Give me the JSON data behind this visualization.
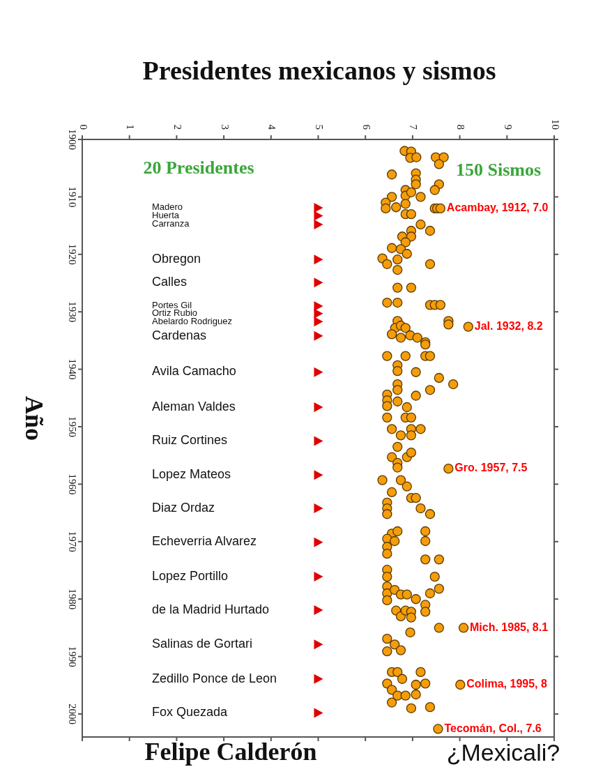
{
  "chart_data": {
    "type": "scatter",
    "title": "Presidentes mexicanos y sismos",
    "ylabel": "Año",
    "xlim": [
      0,
      10
    ],
    "xticks": [
      0,
      1,
      2,
      3,
      4,
      5,
      6,
      7,
      8,
      9,
      10
    ],
    "ylim": [
      2004,
      1900
    ],
    "yticks": [
      1900,
      1910,
      1920,
      1930,
      1940,
      1950,
      1960,
      1970,
      1980,
      1990,
      2000
    ],
    "series": [
      {
        "type": "scatter",
        "marker": "triangle",
        "color": "#e00000",
        "x": [
          5,
          5,
          5,
          5,
          5,
          5,
          5,
          5,
          5,
          5,
          5,
          5,
          5,
          5,
          5,
          5,
          5,
          5,
          5,
          5
        ],
        "values": [
          1911.9,
          1913.3,
          1914.8,
          1920.9,
          1924.9,
          1929.0,
          1930.3,
          1931.7,
          1934.2,
          1940.5,
          1946.6,
          1952.5,
          1958.4,
          1964.2,
          1970.1,
          1976.1,
          1981.9,
          1987.9,
          1993.9,
          1999.8
        ]
      },
      {
        "type": "scatter",
        "marker": "circle",
        "color": "#f59d0a",
        "x": [
          6.83,
          6.97,
          6.95,
          7.08,
          7.49,
          7.66,
          7.56,
          6.56,
          7.07,
          7.07,
          7.07,
          7.56,
          7.47,
          6.85,
          6.85,
          6.97,
          7.17,
          6.56,
          6.43,
          6.43,
          6.65,
          6.85,
          6.85,
          6.97,
          7.47,
          7.52,
          7.59,
          7.17,
          6.97,
          7.37,
          6.78,
          6.97,
          6.85,
          6.56,
          6.75,
          6.88,
          6.36,
          6.46,
          6.68,
          6.68,
          7.37,
          6.68,
          6.97,
          6.46,
          6.68,
          7.37,
          7.47,
          7.59,
          6.68,
          7.76,
          7.76,
          8.18,
          6.63,
          6.75,
          6.85,
          6.56,
          6.75,
          6.95,
          7.1,
          7.27,
          6.46,
          6.85,
          7.27,
          7.27,
          7.37,
          6.68,
          6.68,
          7.07,
          7.56,
          7.86,
          6.68,
          6.68,
          7.37,
          7.07,
          6.46,
          6.46,
          6.46,
          6.68,
          6.88,
          6.46,
          6.85,
          6.97,
          6.56,
          6.75,
          6.97,
          6.97,
          7.17,
          6.68,
          6.56,
          6.88,
          6.97,
          6.68,
          6.68,
          7.76,
          6.36,
          6.75,
          6.88,
          6.56,
          6.97,
          7.07,
          7.17,
          7.37,
          6.46,
          6.46,
          6.46,
          6.56,
          6.46,
          6.68,
          7.27,
          7.27,
          6.46,
          6.46,
          6.62,
          7.27,
          7.56,
          6.46,
          6.46,
          7.47,
          7.56,
          6.46,
          6.46,
          6.46,
          6.62,
          6.75,
          6.88,
          7.07,
          7.37,
          7.27,
          7.27,
          6.65,
          6.75,
          6.85,
          6.97,
          6.97,
          7.56,
          8.08,
          6.95,
          6.46,
          6.62,
          6.46,
          6.75,
          6.56,
          6.68,
          7.17,
          6.46,
          6.56,
          6.78,
          6.68,
          6.85,
          7.07,
          7.07,
          7.27,
          6.56,
          6.97,
          7.37,
          8.01,
          7.54
        ],
        "values": [
          1902.0,
          1902.1,
          1903.2,
          1903.1,
          1903.1,
          1903.1,
          1904.3,
          1906.1,
          1905.9,
          1907.0,
          1907.8,
          1907.8,
          1908.8,
          1908.8,
          1909.8,
          1909.2,
          1910.0,
          1910.0,
          1911.0,
          1912.0,
          1911.8,
          1911.2,
          1913.0,
          1913.0,
          1912.0,
          1912.0,
          1912.0,
          1914.8,
          1915.9,
          1915.9,
          1916.9,
          1916.9,
          1917.9,
          1918.9,
          1919.1,
          1919.9,
          1920.7,
          1921.7,
          1920.9,
          1922.7,
          1921.7,
          1925.8,
          1925.8,
          1928.4,
          1928.4,
          1928.8,
          1928.8,
          1928.8,
          1931.6,
          1931.6,
          1932.2,
          1932.6,
          1932.8,
          1932.4,
          1932.8,
          1933.9,
          1934.5,
          1934.1,
          1934.5,
          1935.3,
          1937.7,
          1937.7,
          1935.7,
          1937.7,
          1937.7,
          1939.3,
          1940.3,
          1940.5,
          1941.5,
          1942.6,
          1942.6,
          1943.6,
          1943.6,
          1944.6,
          1944.4,
          1945.4,
          1946.4,
          1945.6,
          1946.6,
          1948.4,
          1948.4,
          1948.4,
          1950.4,
          1951.5,
          1950.4,
          1951.5,
          1950.4,
          1953.5,
          1955.3,
          1955.3,
          1954.5,
          1956.3,
          1957.1,
          1957.3,
          1959.3,
          1959.3,
          1960.4,
          1961.4,
          1962.4,
          1962.4,
          1964.2,
          1965.2,
          1963.2,
          1964.2,
          1965.2,
          1968.6,
          1969.5,
          1968.2,
          1968.2,
          1969.9,
          1970.9,
          1972.1,
          1969.9,
          1973.1,
          1973.1,
          1974.9,
          1976.1,
          1976.1,
          1978.2,
          1977.8,
          1979.0,
          1980.2,
          1978.4,
          1979.2,
          1979.2,
          1980.0,
          1979.0,
          1981.0,
          1982.2,
          1982.0,
          1983.0,
          1982.0,
          1982.2,
          1983.2,
          1985.0,
          1985.0,
          1985.8,
          1986.9,
          1987.9,
          1989.1,
          1988.9,
          1992.7,
          1992.7,
          1992.7,
          1994.7,
          1995.8,
          1993.9,
          1996.8,
          1996.8,
          1994.9,
          1996.6,
          1994.7,
          1998.0,
          1999.0,
          1998.8,
          1994.9,
          2002.6
        ]
      }
    ],
    "annotations": [
      "20 Presidentes",
      "150 Sismos",
      "Felipe Calderón",
      "¿Mexicali?",
      "Madero",
      "Huerta",
      "Carranza",
      "Obregon",
      "Calles",
      "Portes Gil",
      "Ortiz Rubio",
      "Abelardo Rodriguez",
      "Cardenas",
      "Avila Camacho",
      "Aleman Valdes",
      "Ruiz Cortines",
      "Lopez Mateos",
      "Diaz Ordaz",
      "Echeverria Alvarez",
      "Lopez Portillo",
      "de la Madrid Hurtado",
      "Salinas de Gortari",
      "Zedillo Ponce de Leon",
      "Fox Quezada",
      {
        "text": "Acambay, 1912, 7.0",
        "x": 7.59,
        "y": 1912.0
      },
      {
        "text": "Jal. 1932, 8.2",
        "x": 8.18,
        "y": 1932.6
      },
      {
        "text": "Gro. 1957, 7.5",
        "x": 7.76,
        "y": 1957.3
      },
      {
        "text": "Mich. 1985, 8.1",
        "x": 8.08,
        "y": 1985.0
      },
      {
        "text": "Colima,  1995, 8",
        "x": 8.01,
        "y": 1994.9
      },
      {
        "text": "Tecomán, Col., 7.6",
        "x": 7.54,
        "y": 2002.6
      }
    ]
  }
}
